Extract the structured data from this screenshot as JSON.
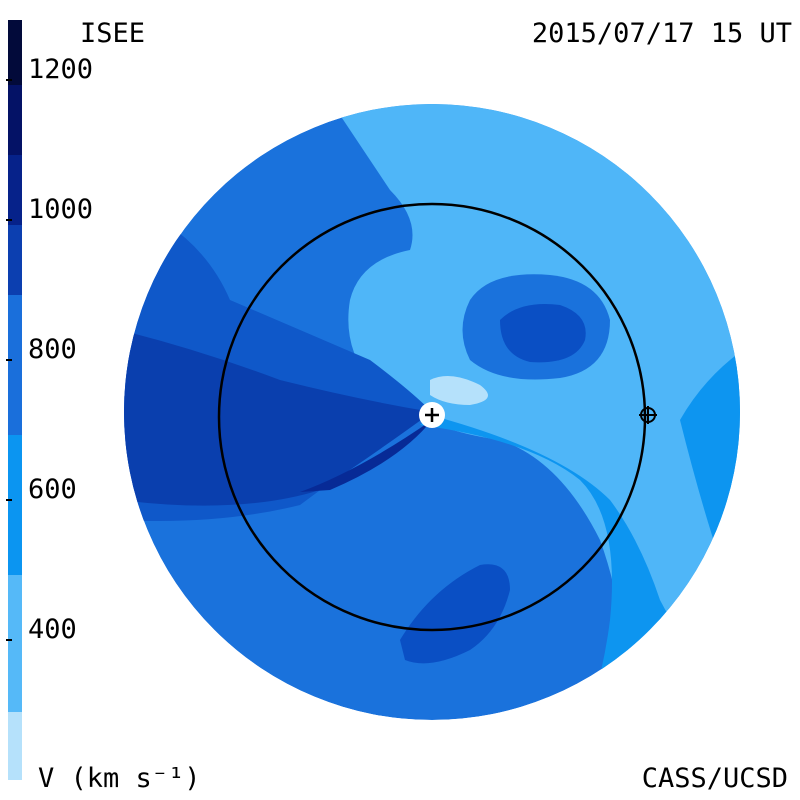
{
  "header": {
    "left": "ISEE",
    "right": "2015/07/17 15 UT"
  },
  "colorbar": {
    "ticks": [
      400,
      600,
      800,
      1000,
      1200
    ]
  },
  "footer": {
    "left": "V (km s⁻¹)",
    "right": "CASS/UCSD"
  }
}
